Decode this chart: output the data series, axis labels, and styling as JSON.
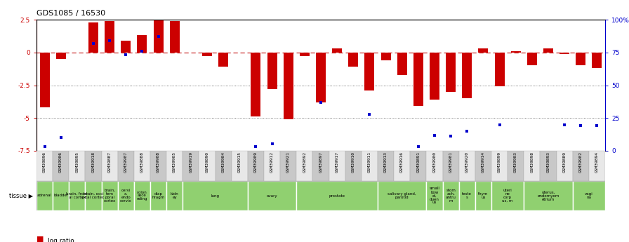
{
  "title": "GDS1085 / 16530",
  "samples": [
    "GSM39896",
    "GSM39906",
    "GSM39895",
    "GSM39918",
    "GSM39887",
    "GSM39907",
    "GSM39888",
    "GSM39908",
    "GSM39905",
    "GSM39919",
    "GSM39890",
    "GSM39904",
    "GSM39915",
    "GSM39909",
    "GSM39912",
    "GSM39921",
    "GSM39892",
    "GSM39897",
    "GSM39917",
    "GSM39910",
    "GSM39911",
    "GSM39913",
    "GSM39916",
    "GSM39891",
    "GSM39900",
    "GSM39901",
    "GSM39920",
    "GSM39914",
    "GSM39899",
    "GSM39903",
    "GSM39898",
    "GSM39893",
    "GSM39889",
    "GSM39902",
    "GSM39894"
  ],
  "log_ratio": [
    -4.2,
    -0.5,
    0.0,
    2.3,
    2.4,
    0.9,
    1.3,
    2.5,
    2.4,
    0.0,
    -0.3,
    -1.1,
    0.0,
    -4.9,
    -2.8,
    -5.1,
    -0.3,
    -3.8,
    0.3,
    -1.1,
    -2.9,
    -0.6,
    -1.7,
    -4.1,
    -3.6,
    -3.0,
    -3.5,
    0.3,
    -2.6,
    0.1,
    -1.0,
    0.3,
    -0.1,
    -1.0,
    -1.2
  ],
  "percentile_rank": [
    3.0,
    10.0,
    null,
    82.0,
    84.0,
    73.0,
    76.0,
    87.0,
    null,
    null,
    null,
    null,
    null,
    3.0,
    5.5,
    null,
    null,
    37.0,
    null,
    null,
    28.0,
    null,
    null,
    3.0,
    12.0,
    11.0,
    15.0,
    null,
    20.0,
    null,
    null,
    null,
    20.0,
    19.0,
    19.0
  ],
  "tissues": [
    {
      "label": "adrenal",
      "start": 0,
      "end": 1
    },
    {
      "label": "bladder",
      "start": 1,
      "end": 2
    },
    {
      "label": "brain, front\nal cortex",
      "start": 2,
      "end": 3
    },
    {
      "label": "brain, occi\npital cortex",
      "start": 3,
      "end": 4
    },
    {
      "label": "brain,\ntem\nporal\ncortex",
      "start": 4,
      "end": 5
    },
    {
      "label": "cervi\nx,\nendo\ncervix",
      "start": 5,
      "end": 6
    },
    {
      "label": "colon\nasce\nnding",
      "start": 6,
      "end": 7
    },
    {
      "label": "diap\nhragm",
      "start": 7,
      "end": 8
    },
    {
      "label": "kidn\ney",
      "start": 8,
      "end": 9
    },
    {
      "label": "lung",
      "start": 9,
      "end": 13
    },
    {
      "label": "ovary",
      "start": 13,
      "end": 16
    },
    {
      "label": "prostate",
      "start": 16,
      "end": 21
    },
    {
      "label": "salivary gland,\nparotid",
      "start": 21,
      "end": 24
    },
    {
      "label": "small\nbow\nel,\nduen\nus",
      "start": 24,
      "end": 25
    },
    {
      "label": "stom\nach,\nantru\nm",
      "start": 25,
      "end": 26
    },
    {
      "label": "teste\ns",
      "start": 26,
      "end": 27
    },
    {
      "label": "thym\nus",
      "start": 27,
      "end": 28
    },
    {
      "label": "uteri\nne\ncorp\nus, m",
      "start": 28,
      "end": 30
    },
    {
      "label": "uterus,\nendomyom\netrium",
      "start": 30,
      "end": 33
    },
    {
      "label": "vagi\nna",
      "start": 33,
      "end": 35
    }
  ],
  "ylim_left": [
    -7.5,
    2.5
  ],
  "ylim_right": [
    0,
    100
  ],
  "bar_color_red": "#cc0000",
  "bar_color_blue": "#0000cc",
  "zero_line_color": "#cc3333",
  "dotted_line_color": "#555555",
  "bar_width": 0.6,
  "tissue_color": "#90d070",
  "tissue_edge_color": "#999999",
  "col_color_even": "#e8e8e8",
  "col_color_odd": "#c8c8c8"
}
